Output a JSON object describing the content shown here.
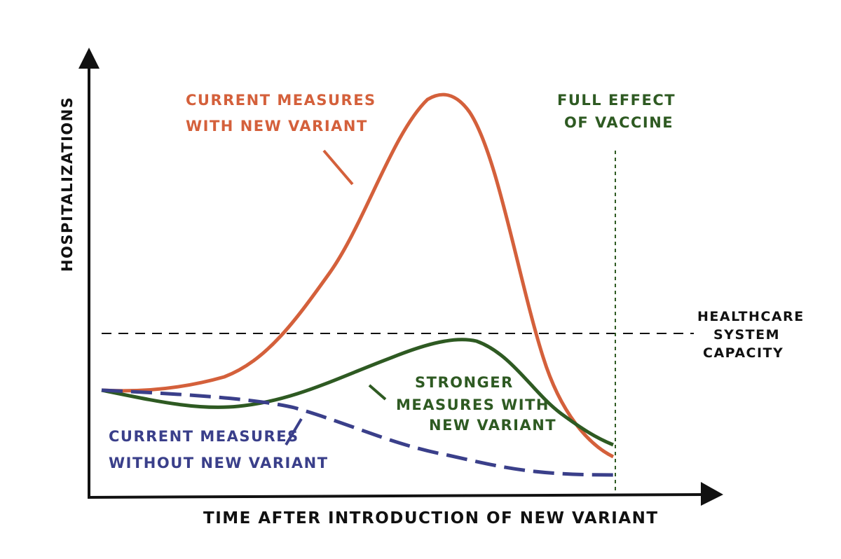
{
  "axes": {
    "y_label": "HOSPITALIZATIONS",
    "x_label": "TIME AFTER INTRODUCTION OF NEW VARIANT"
  },
  "labels": {
    "current_with_variant": [
      "CURRENT MEASURES",
      "WITH NEW VARIANT"
    ],
    "stronger_with_variant": [
      "STRONGER",
      "MEASURES WITH",
      "NEW VARIANT"
    ],
    "current_without_variant": [
      "CURRENT MEASURES",
      "WITHOUT NEW VARIANT"
    ],
    "vaccine": [
      "FULL EFFECT",
      "OF VACCINE"
    ],
    "capacity": [
      "HEALTHCARE",
      "SYSTEM",
      "CAPACITY"
    ]
  }
}
